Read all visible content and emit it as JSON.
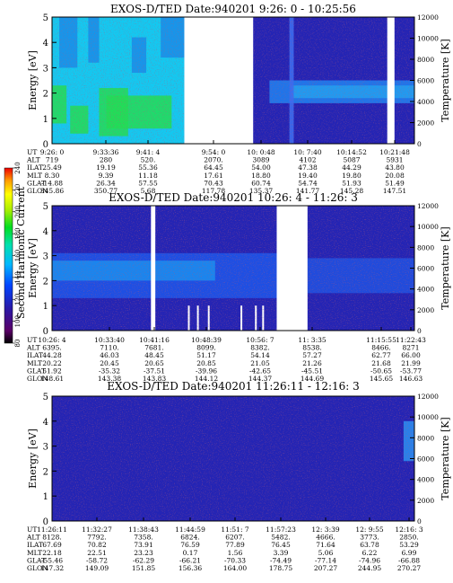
{
  "chart_data": [
    {
      "type": "heatmap",
      "title": "EXOS-D/TED   Date:940201  9:26: 0 - 10:25:56",
      "ylabel": "Energy [eV]",
      "y2label": "Temperature [K]",
      "ylim": [
        0,
        5
      ],
      "y2lim": [
        0,
        12000
      ],
      "yticks": [
        "0",
        "1",
        "2",
        "3",
        "4",
        "5"
      ],
      "y2ticks": [
        "0",
        "2000",
        "4000",
        "6000",
        "8000",
        "10000",
        "12000"
      ],
      "data_gaps": [
        [
          0.365,
          0.555
        ],
        [
          0.925,
          0.945
        ]
      ],
      "ephemeris_labels": [
        "UT",
        "ALT",
        "ILAT",
        "MLT",
        "GLAT",
        "GLON"
      ],
      "ephemeris": [
        {
          "UT": "9:26: 0",
          "ALT": "719",
          "ILAT": "25.49",
          "MLT": "8.30",
          "GLAT": "-14.88",
          "GLON": "345.86"
        },
        {
          "UT": "9:33:36",
          "ALT": "280",
          "ILAT": "19.19",
          "MLT": "9.39",
          "GLAT": "26.34",
          "GLON": "350.77"
        },
        {
          "UT": "9:41: 4",
          "ALT": "520.",
          "ILAT": "55.36",
          "MLT": "11.18",
          "GLAT": "57.55",
          "GLON": "5.68"
        },
        {
          "UT": "9:54: 0",
          "ALT": "2070.",
          "ILAT": "64.45",
          "MLT": "17.61",
          "GLAT": "70.43",
          "GLON": "117.78"
        },
        {
          "UT": "10: 0:48",
          "ALT": "3089",
          "ILAT": "54.00",
          "MLT": "18.80",
          "GLAT": "60.74",
          "GLON": "135.37"
        },
        {
          "UT": "10: 7:40",
          "ALT": "4102",
          "ILAT": "47.38",
          "MLT": "19.40",
          "GLAT": "54.74",
          "GLON": "141.77"
        },
        {
          "UT": "10:14:52",
          "ALT": "5087",
          "ILAT": "44.29",
          "MLT": "19.80",
          "GLAT": "51.93",
          "GLON": "145.28"
        },
        {
          "UT": "10:21:48",
          "ALT": "5931",
          "ILAT": "43.80",
          "MLT": "20.08",
          "GLAT": "51.49",
          "GLON": "147.51"
        }
      ]
    },
    {
      "type": "heatmap",
      "title": "EXOS-D/TED   Date:940201  10:26: 4 - 11:26: 3",
      "ylabel": "Energy [eV]",
      "y2label": "Temperature [K]",
      "ylim": [
        0,
        5
      ],
      "y2lim": [
        0,
        12000
      ],
      "yticks": [
        "0",
        "1",
        "2",
        "3",
        "4",
        "5"
      ],
      "y2ticks": [
        "0",
        "2000",
        "4000",
        "6000",
        "8000",
        "10000",
        "12000"
      ],
      "colorbar": {
        "label": "Second Harmonic Current",
        "ticks": [
          "80",
          "100",
          "120",
          "140",
          "160",
          "180",
          "200",
          "220",
          "240"
        ],
        "range": [
          80,
          240
        ]
      },
      "data_gaps": [
        [
          0.273,
          0.285
        ],
        [
          0.62,
          0.705
        ]
      ],
      "ephemeris_labels": [
        "UT",
        "ALT",
        "ILAT",
        "MLT",
        "GLAT",
        "GLON"
      ],
      "ephemeris": [
        {
          "UT": "10:26: 4",
          "ALT": "6395.",
          "ILAT": "44.28",
          "MLT": "20.22",
          "GLAT": "51.92",
          "GLON": "148.61"
        },
        {
          "UT": "10:33:40",
          "ALT": "7110.",
          "ILAT": "46.03",
          "MLT": "20.45",
          "GLAT": "-35.32",
          "GLON": "143.38"
        },
        {
          "UT": "10:41:16",
          "ALT": "7681.",
          "ILAT": "48.45",
          "MLT": "20.65",
          "GLAT": "-37.51",
          "GLON": "143.83"
        },
        {
          "UT": "10:48:39",
          "ALT": "8099.",
          "ILAT": "51.17",
          "MLT": "20.85",
          "GLAT": "-39.96",
          "GLON": "144.12"
        },
        {
          "UT": "10:56: 7",
          "ALT": "8382.",
          "ILAT": "54.14",
          "MLT": "21.05",
          "GLAT": "-42.65",
          "GLON": "144.37"
        },
        {
          "UT": "11: 3:35",
          "ALT": "8538.",
          "ILAT": "57.27",
          "MLT": "21.26",
          "GLAT": "-45.51",
          "GLON": "144.69"
        },
        {
          "UT": "11:15:55",
          "ALT": "8466.",
          "ILAT": "62.77",
          "MLT": "21.68",
          "GLAT": "-50.65",
          "GLON": "145.65"
        },
        {
          "UT": "11:22:43",
          "ALT": "8271",
          "ILAT": "66.00",
          "MLT": "21.99",
          "GLAT": "-53.77",
          "GLON": "146.63"
        }
      ]
    },
    {
      "type": "heatmap",
      "title": "EXOS-D/TED   Date:940201  11:26:11 - 12:16: 3",
      "ylabel": "Energy [eV]",
      "y2label": "Temperature [K]",
      "ylim": [
        0,
        5
      ],
      "y2lim": [
        0,
        12000
      ],
      "yticks": [
        "0",
        "1",
        "2",
        "3",
        "4",
        "5"
      ],
      "y2ticks": [
        "0",
        "2000",
        "4000",
        "6000",
        "8000",
        "10000",
        "12000"
      ],
      "data_gaps": [],
      "ephemeris_labels": [
        "UT",
        "ALT",
        "ILAT",
        "MLT",
        "GLAT",
        "GLON"
      ],
      "ephemeris": [
        {
          "UT": "11:26:11",
          "ALT": "8128.",
          "ILAT": "67.69",
          "MLT": "22.18",
          "GLAT": "-55.46",
          "GLON": "147.32"
        },
        {
          "UT": "11:32:27",
          "ALT": "7792.",
          "ILAT": "70.82",
          "MLT": "22.51",
          "GLAT": "-58.72",
          "GLON": "149.09"
        },
        {
          "UT": "11:38:43",
          "ALT": "7358.",
          "ILAT": "73.91",
          "MLT": "23.23",
          "GLAT": "-62.29",
          "GLON": "151.85"
        },
        {
          "UT": "11:44:59",
          "ALT": "6824.",
          "ILAT": "76.59",
          "MLT": "0.17",
          "GLAT": "-66.21",
          "GLON": "156.36"
        },
        {
          "UT": "11:51: 7",
          "ALT": "6207.",
          "ILAT": "77.89",
          "MLT": "1.56",
          "GLAT": "-70.33",
          "GLON": "164.00"
        },
        {
          "UT": "11:57:23",
          "ALT": "5482.",
          "ILAT": "76.45",
          "MLT": "3.39",
          "GLAT": "-74.49",
          "GLON": "178.75"
        },
        {
          "UT": "12: 3:39",
          "ALT": "4666.",
          "ILAT": "71.64",
          "MLT": "5.06",
          "GLAT": "-77.14",
          "GLON": "207.27"
        },
        {
          "UT": "12: 9:55",
          "ALT": "3773.",
          "ILAT": "63.78",
          "MLT": "6.22",
          "GLAT": "-74.96",
          "GLON": "244.95"
        },
        {
          "UT": "12:16: 3",
          "ALT": "2850.",
          "ILAT": "53.29",
          "MLT": "6.99",
          "GLAT": "-66.88",
          "GLON": "270.27"
        }
      ]
    }
  ]
}
